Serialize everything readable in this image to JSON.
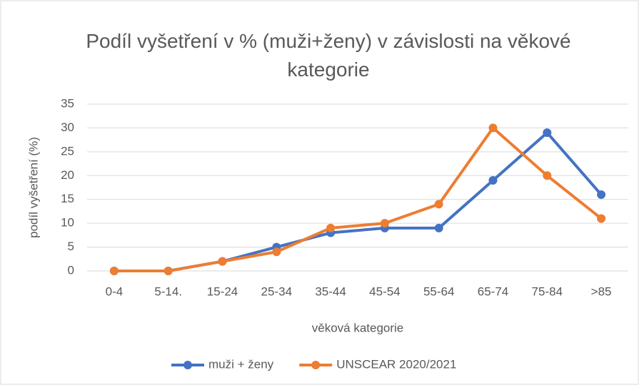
{
  "chart_data": {
    "type": "line",
    "title": "Podíl vyšetření v % (muži+ženy) v závislosti na věkové kategorie",
    "x_label": "věková kategorie",
    "y_label": "podíl vyšetření (%)",
    "categories": [
      "0-4",
      "5-14.",
      "15-24",
      "25-34",
      "35-44",
      "45-54",
      "55-64",
      "65-74",
      "75-84",
      ">85"
    ],
    "series": [
      {
        "name": "muži + ženy",
        "color": "#4472c4",
        "values": [
          0,
          0,
          2,
          5,
          8,
          9,
          9,
          19,
          29,
          16
        ]
      },
      {
        "name": "UNSCEAR 2020/2021",
        "color": "#ed7d31",
        "values": [
          0,
          0,
          2,
          4,
          9,
          10,
          14,
          30,
          20,
          11
        ]
      }
    ],
    "ylim": [
      0,
      35
    ],
    "yticks": [
      0,
      5,
      10,
      15,
      20,
      25,
      30,
      35
    ],
    "grid": true,
    "legend": "bottom"
  }
}
